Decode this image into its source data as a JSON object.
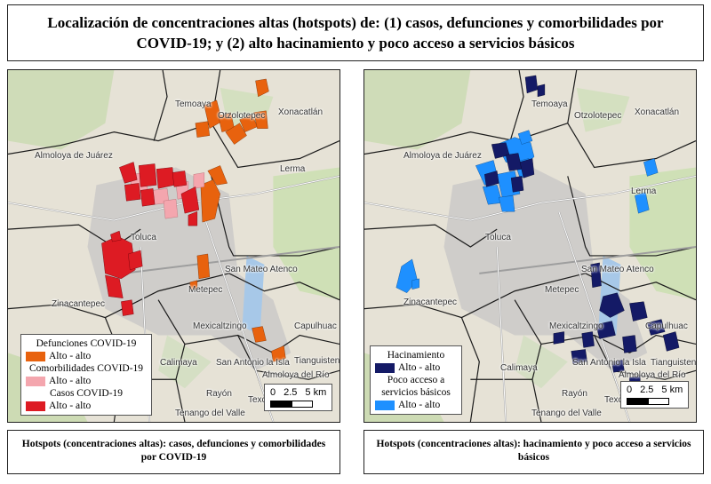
{
  "title": "Localización de concentraciones altas (hotspots) de: (1) casos, defunciones y comorbilidades por COVID-19; y (2) alto hacinamiento y poco acceso a servicios básicos",
  "colors": {
    "defunciones": "#e8620e",
    "comorbilidades": "#f4a6ae",
    "casos": "#dd1b23",
    "hacinamiento": "#141a66",
    "servicios": "#1e90ff"
  },
  "places": {
    "temoaya": "Temoaya",
    "otzolotepec": "Otzolotepec",
    "xonacatlan": "Xonacatlán",
    "almoloya_juarez": "Almoloya de Juárez",
    "lerma": "Lerma",
    "toluca": "Toluca",
    "san_mateo_atenco": "San Mateo Atenco",
    "metepec": "Metepec",
    "zinacantepec": "Zinacantepec",
    "mexicaltzingo": "Mexicaltzingo",
    "capulhuac": "Capulhuac",
    "calimaya": "Calimaya",
    "san_antonio_isla": "San Antonio la Isla",
    "tianguistenco": "Tianguistenco",
    "almoloya_rio": "Almoloya del Río",
    "rayon": "Rayón",
    "texcalyacac": "Texc",
    "tenango": "Tenango del Valle"
  },
  "left_legend": {
    "defunciones_title": "Defunciones COVID-19",
    "defunciones_item": "Alto - alto",
    "comorbilidades_title": "Comorbilidades COVID-19",
    "comorbilidades_item": "Alto - alto",
    "casos_title": "Casos COVID-19",
    "casos_item": "Alto - alto"
  },
  "right_legend": {
    "hacinamiento_title": "Hacinamiento",
    "hacinamiento_item": "Alto - alto",
    "servicios_title": "Poco acceso a servicios básicos",
    "servicios_item": "Alto - alto"
  },
  "scale": {
    "n0": "0",
    "n1": "2.5",
    "n2": "5 km"
  },
  "caption_left": "Hotspots (concentraciones altas): casos, defunciones y comorbilidades por COVID-19",
  "caption_right": "Hotspots (concentraciones altas): hacinamiento y poco acceso a servicios básicos"
}
